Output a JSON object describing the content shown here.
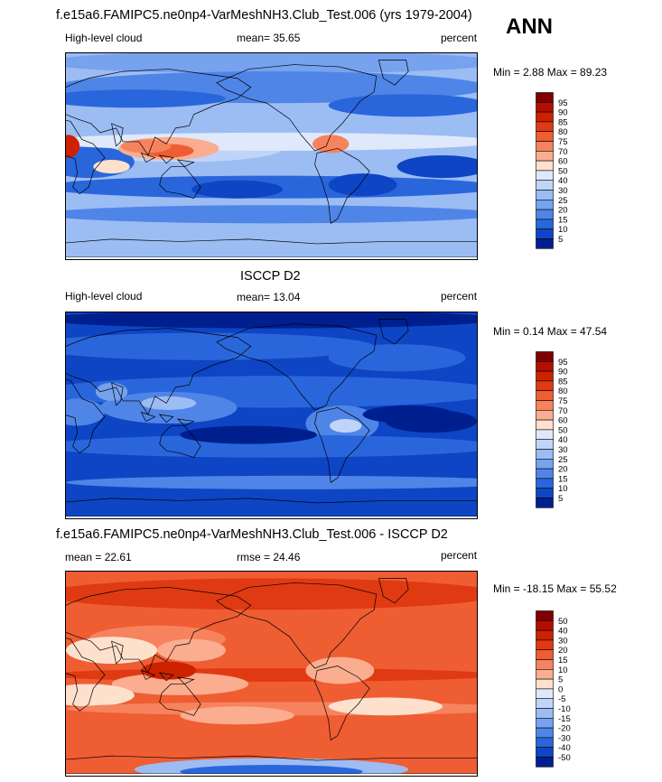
{
  "season": "ANN",
  "panels": [
    {
      "title": "f.e15a6.FAMIPC5.ne0np4-VarMeshNH3.Club_Test.006 (yrs 1979-2004)",
      "left_label": "High-level cloud",
      "center_label": "mean=  35.65",
      "right_label": "percent",
      "minmax": "Min =   2.88 Max =  89.23",
      "palette": "abs",
      "colorbar": {
        "levels": [
          "95",
          "90",
          "85",
          "80",
          "75",
          "70",
          "60",
          "50",
          "40",
          "30",
          "25",
          "20",
          "15",
          "10",
          "5"
        ],
        "colors": [
          "#7f0000",
          "#b30f00",
          "#cc2200",
          "#e03a12",
          "#ef5d33",
          "#f6835e",
          "#fbad8f",
          "#fde1cc",
          "#dfe9fb",
          "#bfd4f8",
          "#9cbcf4",
          "#76a2ee",
          "#4f85e6",
          "#2a66db",
          "#0d45c4",
          "#001f8e"
        ]
      }
    },
    {
      "title": "ISCCP D2",
      "left_label": "High-level cloud",
      "center_label": "mean=  13.04",
      "right_label": "percent",
      "minmax": "Min =   0.14 Max =  47.54",
      "palette": "abs",
      "colorbar": {
        "levels": [
          "95",
          "90",
          "85",
          "80",
          "75",
          "70",
          "60",
          "50",
          "40",
          "30",
          "25",
          "20",
          "15",
          "10",
          "5"
        ],
        "colors": [
          "#7f0000",
          "#b30f00",
          "#cc2200",
          "#e03a12",
          "#ef5d33",
          "#f6835e",
          "#fbad8f",
          "#fde1cc",
          "#dfe9fb",
          "#bfd4f8",
          "#9cbcf4",
          "#76a2ee",
          "#4f85e6",
          "#2a66db",
          "#0d45c4",
          "#001f8e"
        ]
      }
    },
    {
      "title": "f.e15a6.FAMIPC5.ne0np4-VarMeshNH3.Club_Test.006 - ISCCP D2",
      "left_label": "mean =  22.61",
      "center_label": "rmse =  24.46",
      "right_label": "percent",
      "minmax": "Min = -18.15 Max =  55.52",
      "palette": "diff",
      "colorbar": {
        "levels": [
          "50",
          "40",
          "30",
          "20",
          "15",
          "10",
          "5",
          "0",
          "-5",
          "-10",
          "-15",
          "-20",
          "-30",
          "-40",
          "-50"
        ],
        "colors": [
          "#7f0000",
          "#b30f00",
          "#cc2200",
          "#e03a12",
          "#ef5d33",
          "#f6835e",
          "#fbad8f",
          "#fde1cc",
          "#dfe9fb",
          "#bfd4f8",
          "#9cbcf4",
          "#76a2ee",
          "#4f85e6",
          "#2a66db",
          "#0d45c4",
          "#001f8e"
        ]
      }
    }
  ],
  "chart_data": [
    {
      "type": "heatmap",
      "title": "f.e15a6.FAMIPC5.ne0np4-VarMeshNH3.Club_Test.006 (yrs 1979-2004)",
      "field": "High-level cloud",
      "units": "percent",
      "mean": 35.65,
      "min": 2.88,
      "max": 89.23,
      "contour_levels": [
        5,
        10,
        15,
        20,
        25,
        30,
        40,
        50,
        60,
        70,
        75,
        80,
        85,
        90,
        95
      ]
    },
    {
      "type": "heatmap",
      "title": "ISCCP D2",
      "field": "High-level cloud",
      "units": "percent",
      "mean": 13.04,
      "min": 0.14,
      "max": 47.54,
      "contour_levels": [
        5,
        10,
        15,
        20,
        25,
        30,
        40,
        50,
        60,
        70,
        75,
        80,
        85,
        90,
        95
      ]
    },
    {
      "type": "heatmap",
      "title": "f.e15a6.FAMIPC5.ne0np4-VarMeshNH3.Club_Test.006 - ISCCP D2",
      "units": "percent",
      "mean": 22.61,
      "rmse": 24.46,
      "min": -18.15,
      "max": 55.52,
      "contour_levels": [
        -50,
        -40,
        -30,
        -20,
        -15,
        -10,
        -5,
        0,
        5,
        10,
        15,
        20,
        30,
        40,
        50
      ]
    }
  ]
}
